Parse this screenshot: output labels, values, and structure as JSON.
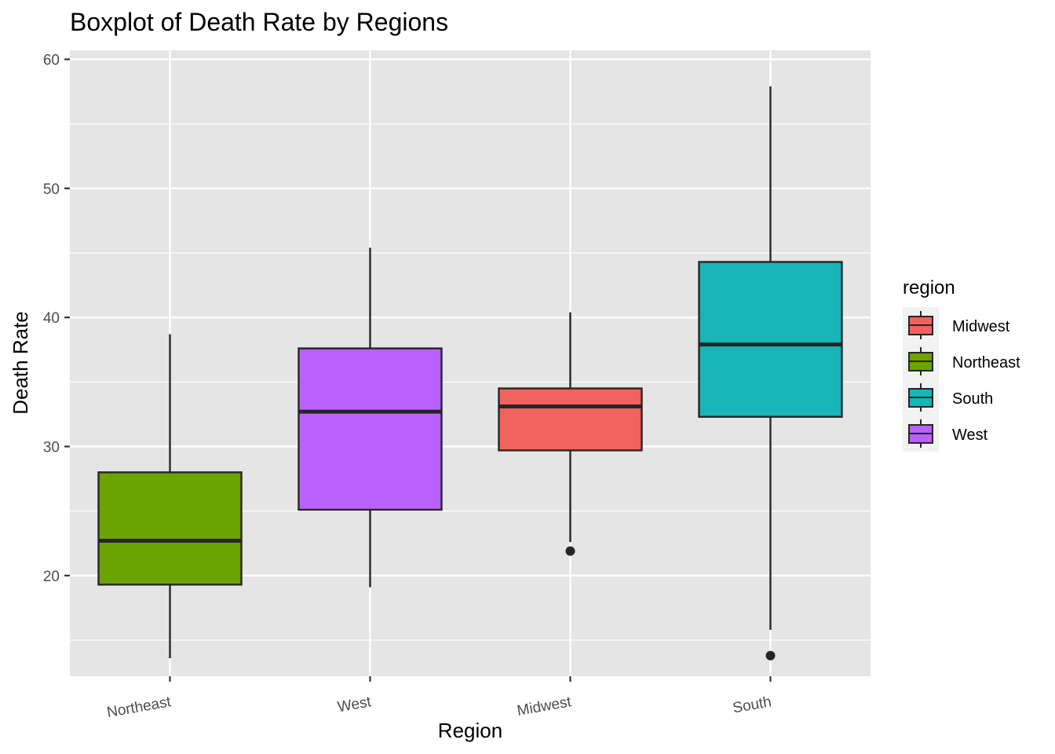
{
  "chart_data": {
    "type": "boxplot",
    "title": "Boxplot of Death Rate by Regions",
    "xlabel": "Region",
    "ylabel": "Death Rate",
    "ylim": [
      12.2,
      60.7
    ],
    "yticks": [
      20,
      30,
      40,
      50,
      60
    ],
    "categories": [
      "Northeast",
      "West",
      "Midwest",
      "South"
    ],
    "boxes": [
      {
        "category": "Northeast",
        "min": 13.6,
        "q1": 19.3,
        "median": 22.7,
        "q3": 28.0,
        "max": 38.7,
        "outliers": [],
        "color": "#6ba300"
      },
      {
        "category": "West",
        "min": 19.1,
        "q1": 25.1,
        "median": 32.7,
        "q3": 37.6,
        "max": 45.4,
        "outliers": [],
        "color": "#b961fe"
      },
      {
        "category": "Midwest",
        "min": 22.6,
        "q1": 29.7,
        "median": 33.1,
        "q3": 34.5,
        "max": 40.4,
        "outliers": [
          21.9
        ],
        "color": "#f2625e"
      },
      {
        "category": "South",
        "min": 15.8,
        "q1": 32.3,
        "median": 37.9,
        "q3": 44.3,
        "max": 57.9,
        "outliers": [
          13.8
        ],
        "color": "#18b4b8"
      }
    ],
    "legend": {
      "title": "region",
      "position": "right",
      "entries": [
        {
          "label": "Midwest",
          "color": "#f2625e"
        },
        {
          "label": "Northeast",
          "color": "#6ba300"
        },
        {
          "label": "South",
          "color": "#18b4b8"
        },
        {
          "label": "West",
          "color": "#b961fe"
        }
      ]
    },
    "grid": true,
    "panel_background": "#e5e5e5",
    "grid_color": "#ffffff",
    "box_outline_color": "#262626"
  }
}
